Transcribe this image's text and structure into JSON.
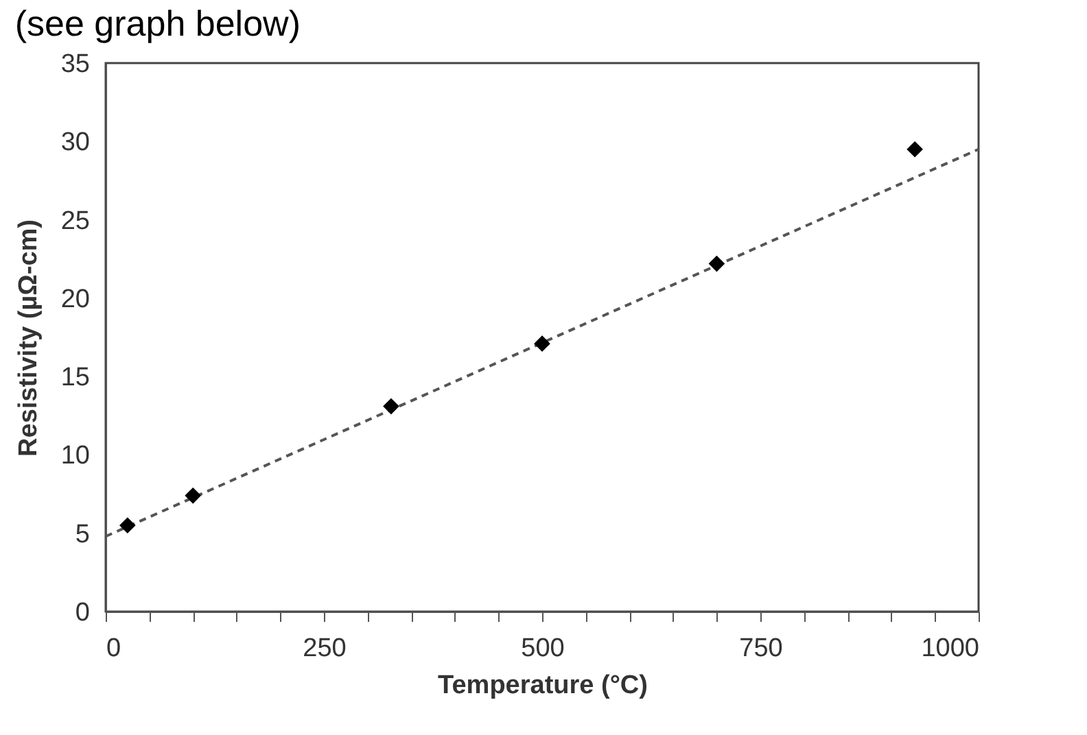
{
  "chart_data": {
    "type": "scatter",
    "xlabel": "Temperature (°C)",
    "ylabel": "Resistivity (µΩ-cm)",
    "annotations": [
      "(see graph below)"
    ],
    "xlim": [
      0,
      1000
    ],
    "ylim": [
      0,
      35
    ],
    "xticks": [
      0,
      {
        "value": 50,
        "label": null
      },
      {
        "value": 100,
        "label": null
      },
      {
        "value": 150,
        "label": null
      },
      {
        "value": 200,
        "label": null
      },
      250,
      {
        "value": 300,
        "label": null
      },
      {
        "value": 350,
        "label": null
      },
      {
        "value": 400,
        "label": null
      },
      {
        "value": 450,
        "label": null
      },
      500,
      {
        "value": 550,
        "label": null
      },
      {
        "value": 600,
        "label": null
      },
      {
        "value": 650,
        "label": null
      },
      {
        "value": 700,
        "label": null
      },
      750,
      {
        "value": 800,
        "label": null
      },
      {
        "value": 850,
        "label": null
      },
      {
        "value": 900,
        "label": null
      },
      {
        "value": 950,
        "label": null
      },
      1000
    ],
    "yticks": [
      0,
      5,
      10,
      15,
      20,
      25,
      30,
      35
    ],
    "grid": false,
    "series": [
      {
        "type": "line",
        "color": "#555555",
        "line_style": "dashed",
        "marker": "none",
        "x": [
          0,
          1000
        ],
        "values": [
          4.8,
          29.5
        ]
      },
      {
        "type": "scatter",
        "color": "#000000",
        "marker": "diamond",
        "x": [
          25,
          100,
          327,
          500,
          700,
          927
        ],
        "values": [
          5.5,
          7.4,
          13.1,
          17.1,
          22.2,
          29.5
        ]
      }
    ]
  }
}
